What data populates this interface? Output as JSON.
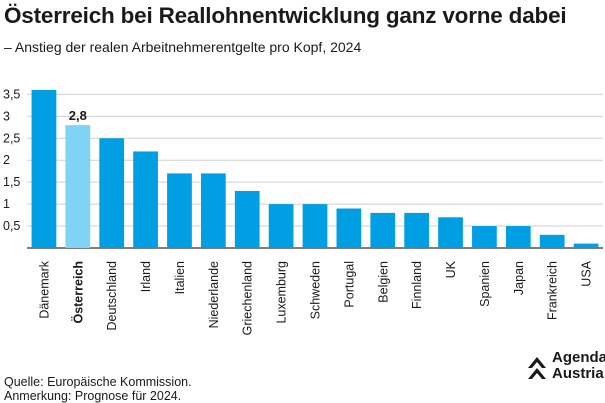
{
  "title": "Österreich bei Reallohnentwicklung ganz vorne dabei",
  "subtitle": "– Anstieg der realen Arbeitnehmerentgelte pro Kopf, 2024",
  "source": "Quelle: Europäische Kommission.",
  "note": "Anmerkung: Prognose für 2024.",
  "logo": {
    "line1": "Agenda",
    "line2": "Austria"
  },
  "colors": {
    "bar": "#009fe3",
    "highlight": "#7fd3f7",
    "grid": "#cfcfcf",
    "text": "#1a1a1a"
  },
  "chart_data": {
    "type": "bar",
    "categories": [
      "Dänemark",
      "Österreich",
      "Deutschland",
      "Irland",
      "Italien",
      "Niederlande",
      "Griechenland",
      "Luxemburg",
      "Schweden",
      "Portugal",
      "Belgien",
      "Finnland",
      "UK",
      "Spanien",
      "Japan",
      "Frankreich",
      "USA"
    ],
    "values": [
      3.6,
      2.8,
      2.5,
      2.2,
      1.7,
      1.7,
      1.3,
      1.0,
      1.0,
      0.9,
      0.8,
      0.8,
      0.7,
      0.5,
      0.5,
      0.3,
      0.1
    ],
    "highlight_index": 1,
    "data_labels": [
      {
        "index": 1,
        "text": "2,8"
      }
    ],
    "yticks": [
      "0,5",
      "1",
      "1,5",
      "2",
      "2,5",
      "3",
      "3,5"
    ],
    "ytick_values": [
      0.5,
      1,
      1.5,
      2,
      2.5,
      3,
      3.5
    ],
    "ylim": [
      0,
      3.6
    ],
    "grid": true,
    "legend": "none",
    "xlabel": "",
    "ylabel": ""
  }
}
